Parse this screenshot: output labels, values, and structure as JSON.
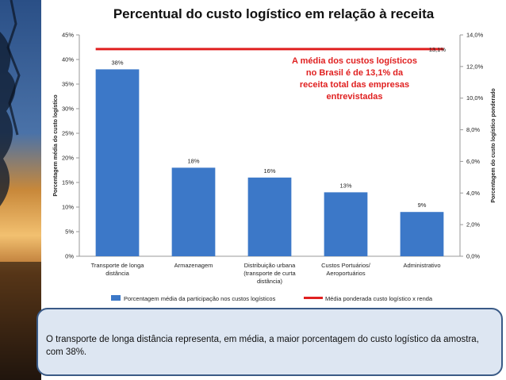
{
  "slide": {
    "title": "Percentual do custo logístico em relação à receita",
    "caption": "O transporte de longa distância representa, em média, a maior porcentagem do custo logístico da amostra, com 38%."
  },
  "chart_data": {
    "type": "bar",
    "title": "Percentual do custo logístico em relação à receita",
    "categories": [
      [
        "Transporte de longa",
        "distância"
      ],
      [
        "Armazenagem"
      ],
      [
        "Distribuição urbana",
        "(transporte de curta",
        "distância)"
      ],
      [
        "Custos Portuários/",
        "Aeroportuários"
      ],
      [
        "Administrativo"
      ]
    ],
    "series": [
      {
        "name": "Porcentagem média da participação nos custos logísticos",
        "axis": "left",
        "values": [
          38,
          18,
          16,
          13,
          9
        ],
        "data_labels": [
          "38%",
          "18%",
          "16%",
          "13%",
          "9%"
        ],
        "color": "#3c78c8"
      },
      {
        "name": "Média ponderada custo logístico x renda",
        "axis": "right",
        "type": "line",
        "value": 13.1,
        "data_label": "13,1%",
        "color": "#e02020"
      }
    ],
    "ylabel": "Porcentagem média do custo logístico",
    "y2label": "Porcentagem do custo logístico ponderado",
    "ylim": [
      0,
      45
    ],
    "yticks": [
      "0%",
      "5%",
      "10%",
      "15%",
      "20%",
      "25%",
      "30%",
      "35%",
      "40%",
      "45%"
    ],
    "y2lim": [
      0,
      14
    ],
    "y2ticks": [
      "0,0%",
      "2,0%",
      "4,0%",
      "6,0%",
      "8,0%",
      "10,0%",
      "12,0%",
      "14,0%"
    ],
    "annotation": [
      "A média dos custos logísticos",
      "no Brasil é de 13,1% da",
      "receita total das empresas",
      "entrevistadas"
    ],
    "annotation_color": "#e02020",
    "legend_position": "bottom",
    "grid": false
  }
}
